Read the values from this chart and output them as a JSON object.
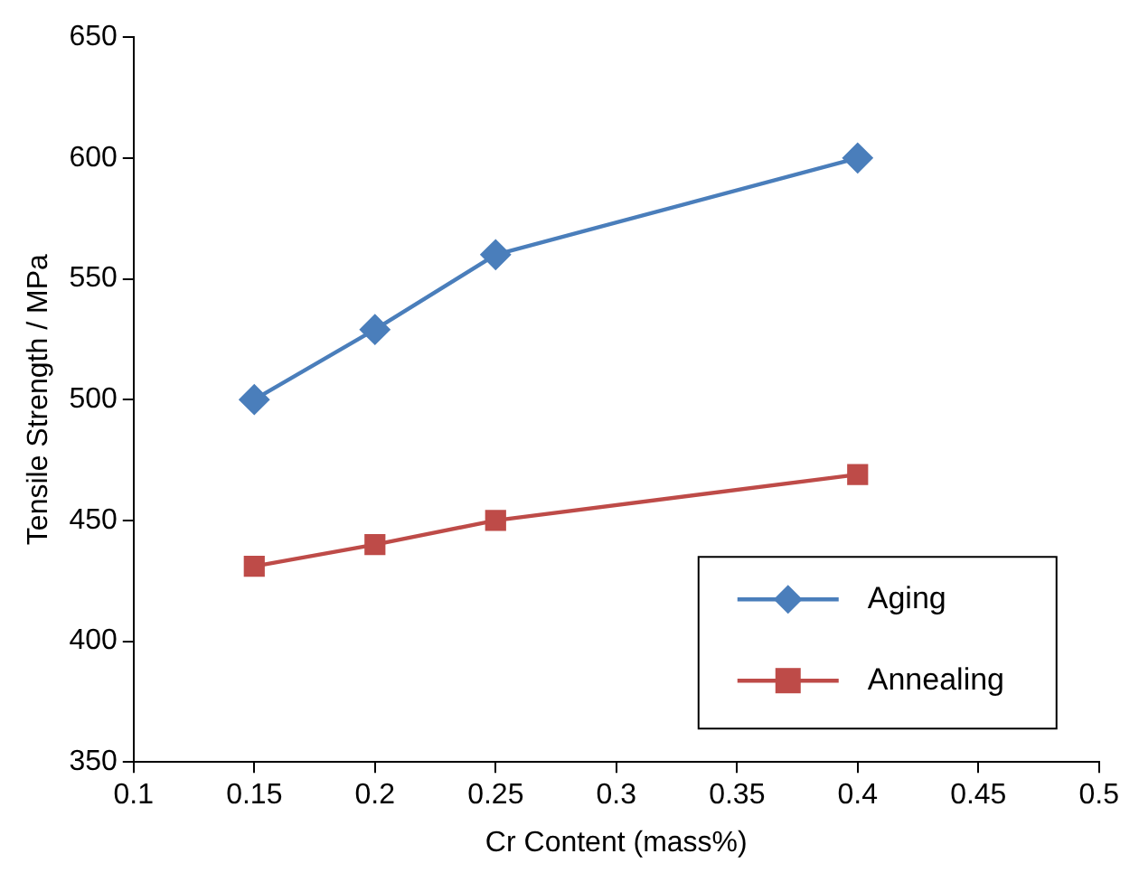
{
  "chart_data": {
    "type": "line",
    "xlabel": "Cr Content (mass%)",
    "ylabel": "Tensile Strength / MPa",
    "x": [
      0.15,
      0.2,
      0.25,
      0.4
    ],
    "series": [
      {
        "name": "Aging",
        "color": "#4a7ebb",
        "marker": "diamond",
        "values": [
          500,
          529,
          560,
          600
        ]
      },
      {
        "name": "Annealing",
        "color": "#be4b48",
        "marker": "square",
        "values": [
          431,
          440,
          450,
          469
        ]
      }
    ],
    "xlim": [
      0.1,
      0.5
    ],
    "xticks": [
      0.1,
      0.15,
      0.2,
      0.25,
      0.3,
      0.35,
      0.4,
      0.45,
      0.5
    ],
    "ylim": [
      350,
      650
    ],
    "yticks": [
      350,
      400,
      450,
      500,
      550,
      600,
      650
    ],
    "grid": false,
    "legend": "bottom right",
    "line_style": "solid"
  }
}
